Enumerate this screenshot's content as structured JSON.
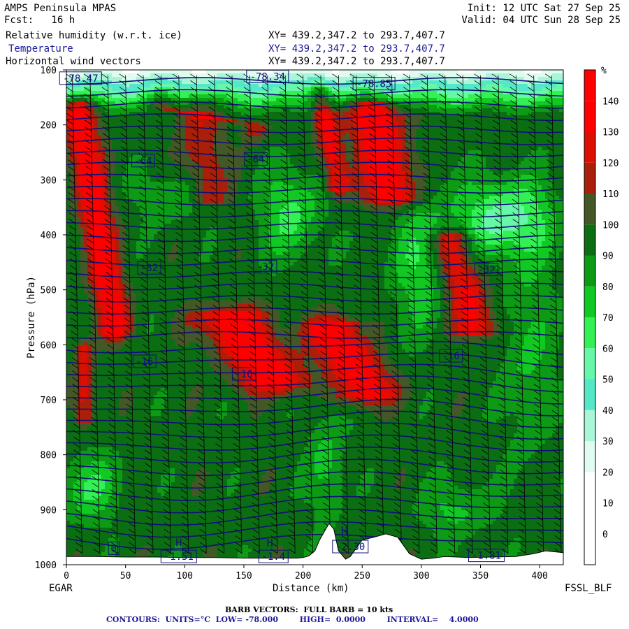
{
  "header": {
    "title": "AMPS Peninsula MPAS",
    "fcst": "Fcst:   16 h",
    "init": "Init: 12 UTC Sat 27 Sep 25",
    "valid": "Valid: 04 UTC Sun 28 Sep 25",
    "fields": [
      {
        "name": "Relative humidity (w.r.t. ice)",
        "xy": "XY= 439.2,347.2 to 293.7,407.7"
      },
      {
        "name": "Temperature",
        "xy": "XY= 439.2,347.2 to 293.7,407.7"
      },
      {
        "name": "Horizontal wind vectors",
        "xy": "XY= 439.2,347.2 to 293.7,407.7"
      }
    ]
  },
  "colors": {
    "rh_bands": [
      "#ffffff",
      "#ffffff",
      "#ffffff",
      "#e0fbef",
      "#a8f5d8",
      "#55e8c8",
      "#66f7a8",
      "#33f055",
      "#11c922",
      "#0d9a14",
      "#0c6e12",
      "#435826",
      "#aa1f0a",
      "#dd0f00",
      "#ff0000"
    ],
    "temp_contour": "#10107a",
    "barb": "#000000"
  },
  "chart_data": {
    "type": "heatmap",
    "xlabel": "Distance (km)",
    "ylabel": "Pressure (hPa)",
    "xlim": [
      0,
      420
    ],
    "ylim": [
      1000,
      100
    ],
    "x_ticks": [
      0,
      50,
      100,
      150,
      200,
      250,
      300,
      350,
      400
    ],
    "y_ticks": [
      100,
      200,
      300,
      400,
      500,
      600,
      700,
      800,
      900,
      1000
    ],
    "left_label": "EGAR",
    "right_label": "FSSL_BLF",
    "colorbar": {
      "unit": "%",
      "levels": [
        0,
        10,
        20,
        30,
        40,
        50,
        60,
        70,
        80,
        90,
        100,
        110,
        120,
        130,
        140
      ],
      "range": [
        -10,
        150
      ]
    },
    "temperature_contours": {
      "units": "°C",
      "low": -78,
      "high": 0,
      "interval": 4,
      "labels": [
        {
          "text": "-64",
          "x": 65,
          "p": 265
        },
        {
          "text": "-64",
          "x": 160,
          "p": 262
        },
        {
          "text": "-32",
          "x": 70,
          "p": 460
        },
        {
          "text": "-32",
          "x": 168,
          "p": 458
        },
        {
          "text": "-32",
          "x": 355,
          "p": 463
        },
        {
          "text": "-16",
          "x": 66,
          "p": 630
        },
        {
          "text": "-16",
          "x": 150,
          "p": 653
        },
        {
          "text": "-16",
          "x": 325,
          "p": 620
        },
        {
          "text": "0",
          "x": 40,
          "p": 970
        },
        {
          "text": "-78.34",
          "x": 170,
          "p": 112
        },
        {
          "text": "-78.47",
          "x": 12,
          "p": 115
        },
        {
          "text": "-78.85",
          "x": 260,
          "p": 125
        },
        {
          "text": "-1.51",
          "x": 95,
          "p": 985
        },
        {
          "text": "-1.4",
          "x": 175,
          "p": 985
        },
        {
          "text": "-2.30",
          "x": 240,
          "p": 967
        },
        {
          "text": "-1.81",
          "x": 355,
          "p": 983
        }
      ],
      "highs": [
        {
          "text": "H",
          "x": 95,
          "p": 966
        },
        {
          "text": "H",
          "x": 172,
          "p": 967
        },
        {
          "text": "H",
          "x": 235,
          "p": 945
        }
      ]
    },
    "terrain_surface_hPa": [
      985,
      985,
      986,
      986,
      987,
      987,
      988,
      988,
      988,
      988,
      987,
      984,
      975,
      955,
      940,
      925,
      935,
      975,
      990,
      985,
      955,
      950,
      944,
      950,
      980,
      990,
      988,
      985,
      987,
      986,
      985,
      980,
      975,
      978
    ],
    "terrain_x_km": [
      0,
      25,
      50,
      75,
      100,
      125,
      150,
      175,
      190,
      195,
      200,
      205,
      210,
      214,
      218,
      222,
      226,
      230,
      236,
      240,
      250,
      260,
      270,
      280,
      290,
      300,
      310,
      320,
      340,
      360,
      380,
      395,
      405,
      420
    ]
  },
  "footer": {
    "barb_line": "BARB VECTORS:  FULL BARB = 10 kts",
    "contour_line": "CONTOURS:  UNITS=°C  LOW= -78.000        HIGH=  0.0000        INTERVAL=    4.0000"
  }
}
